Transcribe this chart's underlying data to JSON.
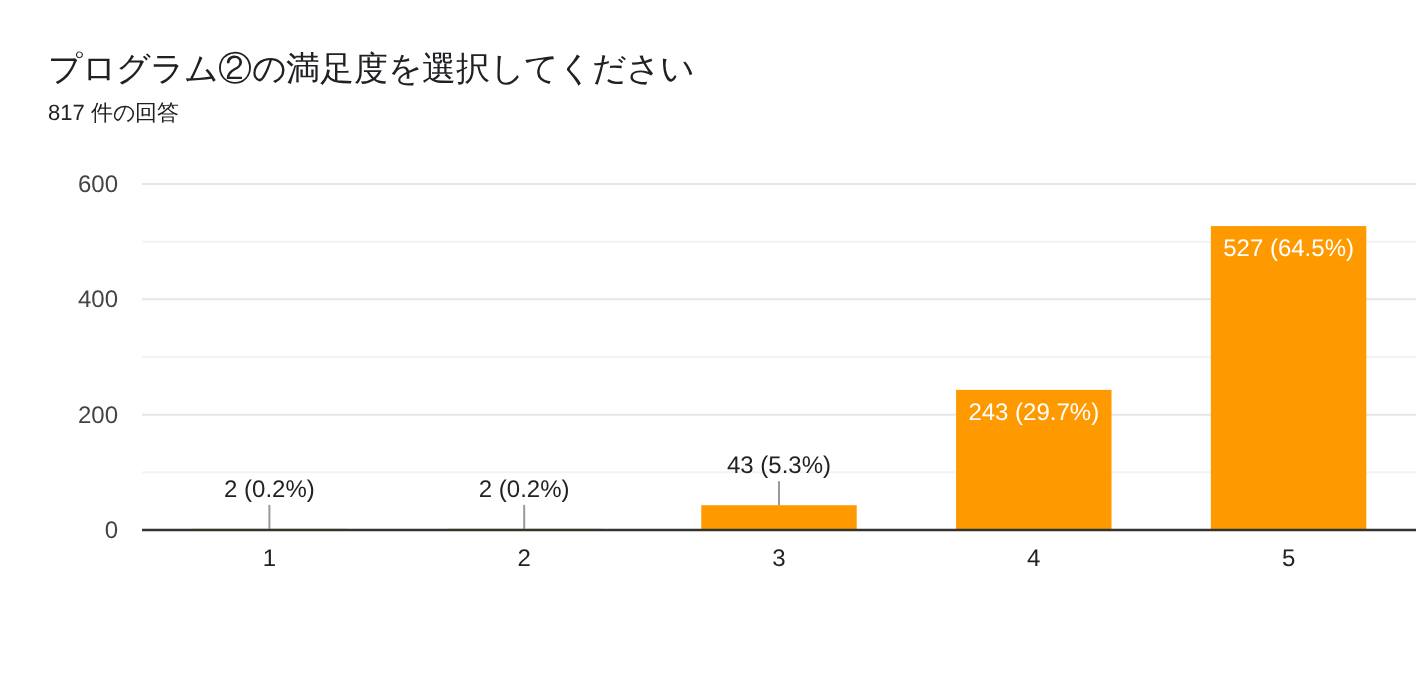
{
  "chart_data": {
    "type": "bar",
    "title": "プログラム②の満足度を選択してください",
    "subtitle": "817 件の回答",
    "categories": [
      "1",
      "2",
      "3",
      "4",
      "5"
    ],
    "values": [
      2,
      2,
      43,
      243,
      527
    ],
    "value_labels": [
      "2 (0.2%)",
      "2 (0.2%)",
      "43 (5.3%)",
      "243 (29.7%)",
      "527 (64.5%)"
    ],
    "color": "#ff9900",
    "ylim": [
      0,
      600
    ],
    "yticks": [
      0,
      {
        "value": 100,
        "label": null
      },
      200,
      {
        "value": 300,
        "label": null
      },
      400,
      {
        "value": 500,
        "label": null
      },
      600
    ],
    "grid": "y"
  }
}
